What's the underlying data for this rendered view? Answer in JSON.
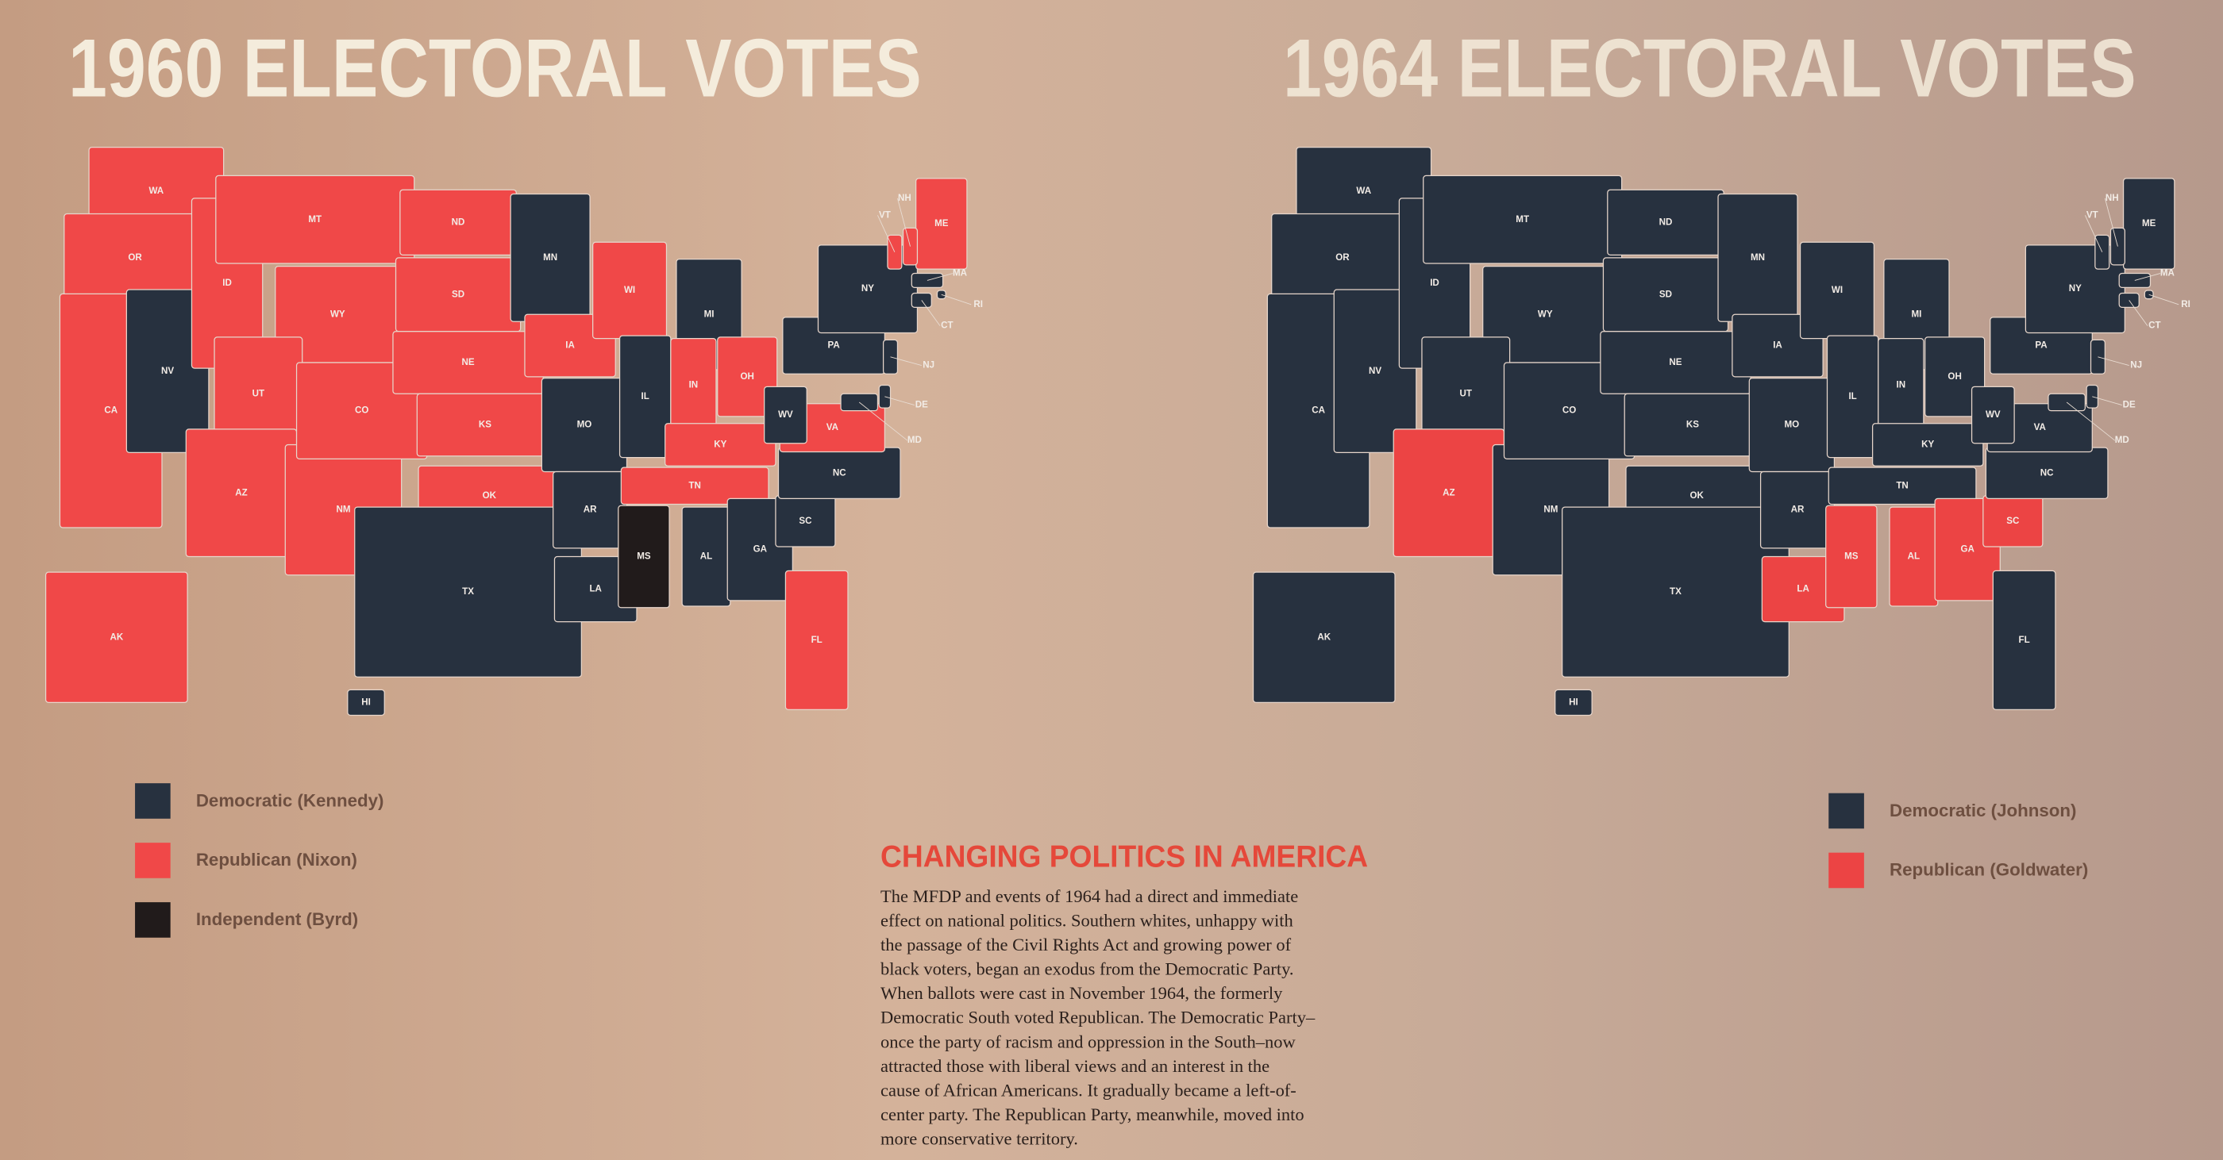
{
  "maps": [
    {
      "title": "1960 ELECTORAL VOTES",
      "legend": [
        {
          "label": "Democratic (Kennedy)",
          "color": "#27313f"
        },
        {
          "label": "Republican (Nixon)",
          "color": "#f04848"
        },
        {
          "label": "Independent (Byrd)",
          "color": "#211b1b"
        }
      ],
      "states": [
        {
          "label": "WA",
          "party": 1
        },
        {
          "label": "OR",
          "party": 1
        },
        {
          "label": "CA",
          "party": 1
        },
        {
          "label": "NV",
          "party": 0
        },
        {
          "label": "ID",
          "party": 1
        },
        {
          "label": "MT",
          "party": 1
        },
        {
          "label": "WY",
          "party": 1
        },
        {
          "label": "UT",
          "party": 1
        },
        {
          "label": "AZ",
          "party": 1
        },
        {
          "label": "NM",
          "party": 1
        },
        {
          "label": "CO",
          "party": 1
        },
        {
          "label": "ND",
          "party": 1
        },
        {
          "label": "SD",
          "party": 1
        },
        {
          "label": "NE",
          "party": 1
        },
        {
          "label": "KS",
          "party": 1
        },
        {
          "label": "OK",
          "party": 1
        },
        {
          "label": "TX",
          "party": 0
        },
        {
          "label": "MN",
          "party": 0
        },
        {
          "label": "IA",
          "party": 1
        },
        {
          "label": "MO",
          "party": 0
        },
        {
          "label": "AR",
          "party": 0
        },
        {
          "label": "LA",
          "party": 0
        },
        {
          "label": "WI",
          "party": 1
        },
        {
          "label": "IL",
          "party": 0
        },
        {
          "label": "MS",
          "party": 2
        },
        {
          "label": "MI",
          "party": 0
        },
        {
          "label": "IN",
          "party": 1
        },
        {
          "label": "OH",
          "party": 1
        },
        {
          "label": "KY",
          "party": 1
        },
        {
          "label": "TN",
          "party": 1
        },
        {
          "label": "AL",
          "party": 0
        },
        {
          "label": "GA",
          "party": 0
        },
        {
          "label": "FL",
          "party": 1
        },
        {
          "label": "SC",
          "party": 0
        },
        {
          "label": "NC",
          "party": 0
        },
        {
          "label": "VA",
          "party": 1
        },
        {
          "label": "WV",
          "party": 0
        },
        {
          "label": "PA",
          "party": 0
        },
        {
          "label": "NY",
          "party": 0
        },
        {
          "label": "ME",
          "party": 1
        },
        {
          "label": "AK",
          "party": 1
        },
        {
          "label": "HI",
          "party": 0
        },
        {
          "label": "VT",
          "party": 1
        },
        {
          "label": "NH",
          "party": 1
        },
        {
          "label": "MA",
          "party": 0
        },
        {
          "label": "RI",
          "party": 0
        },
        {
          "label": "CT",
          "party": 0
        },
        {
          "label": "NJ",
          "party": 0
        },
        {
          "label": "DE",
          "party": 0
        },
        {
          "label": "MD",
          "party": 0
        }
      ]
    },
    {
      "title": "1964 ELECTORAL VOTES",
      "legend": [
        {
          "label": "Democratic (Johnson)",
          "color": "#27313f"
        },
        {
          "label": "Republican (Goldwater)",
          "color": "#ec4444"
        }
      ],
      "states": [
        {
          "label": "WA",
          "party": 0
        },
        {
          "label": "OR",
          "party": 0
        },
        {
          "label": "CA",
          "party": 0
        },
        {
          "label": "NV",
          "party": 0
        },
        {
          "label": "ID",
          "party": 0
        },
        {
          "label": "MT",
          "party": 0
        },
        {
          "label": "WY",
          "party": 0
        },
        {
          "label": "UT",
          "party": 0
        },
        {
          "label": "AZ",
          "party": 1
        },
        {
          "label": "NM",
          "party": 0
        },
        {
          "label": "CO",
          "party": 0
        },
        {
          "label": "ND",
          "party": 0
        },
        {
          "label": "SD",
          "party": 0
        },
        {
          "label": "NE",
          "party": 0
        },
        {
          "label": "KS",
          "party": 0
        },
        {
          "label": "OK",
          "party": 0
        },
        {
          "label": "TX",
          "party": 0
        },
        {
          "label": "MN",
          "party": 0
        },
        {
          "label": "IA",
          "party": 0
        },
        {
          "label": "MO",
          "party": 0
        },
        {
          "label": "AR",
          "party": 0
        },
        {
          "label": "LA",
          "party": 1
        },
        {
          "label": "WI",
          "party": 0
        },
        {
          "label": "IL",
          "party": 0
        },
        {
          "label": "MS",
          "party": 1
        },
        {
          "label": "MI",
          "party": 0
        },
        {
          "label": "IN",
          "party": 0
        },
        {
          "label": "OH",
          "party": 0
        },
        {
          "label": "KY",
          "party": 0
        },
        {
          "label": "TN",
          "party": 0
        },
        {
          "label": "AL",
          "party": 1
        },
        {
          "label": "GA",
          "party": 1
        },
        {
          "label": "FL",
          "party": 0
        },
        {
          "label": "SC",
          "party": 1
        },
        {
          "label": "NC",
          "party": 0
        },
        {
          "label": "VA",
          "party": 0
        },
        {
          "label": "WV",
          "party": 0
        },
        {
          "label": "PA",
          "party": 0
        },
        {
          "label": "NY",
          "party": 0
        },
        {
          "label": "ME",
          "party": 0
        },
        {
          "label": "AK",
          "party": 0
        },
        {
          "label": "HI",
          "party": 0
        },
        {
          "label": "VT",
          "party": 0
        },
        {
          "label": "NH",
          "party": 0
        },
        {
          "label": "MA",
          "party": 0
        },
        {
          "label": "RI",
          "party": 0
        },
        {
          "label": "CT",
          "party": 0
        },
        {
          "label": "NJ",
          "party": 0
        },
        {
          "label": "DE",
          "party": 0
        },
        {
          "label": "MD",
          "party": 0
        }
      ]
    }
  ],
  "article": {
    "title": "CHANGING POLITICS IN AMERICA",
    "lines": [
      "The MFDP and events of 1964 had a direct and immediate",
      "effect on national politics. Southern whites, unhappy with",
      "the passage of the Civil Rights Act and growing power of",
      "black voters, began an exodus from the Democratic Party.",
      "When ballots were cast in November 1964, the formerly",
      "Democratic South voted Republican. The Democratic Party–",
      "once the party of racism and oppression in the South–now",
      "attracted those with liberal views and an interest in the",
      "cause of African Americans. It gradually became a left-of-",
      "center party. The Republican Party, meanwhile, moved into",
      "more conservative territory."
    ]
  }
}
